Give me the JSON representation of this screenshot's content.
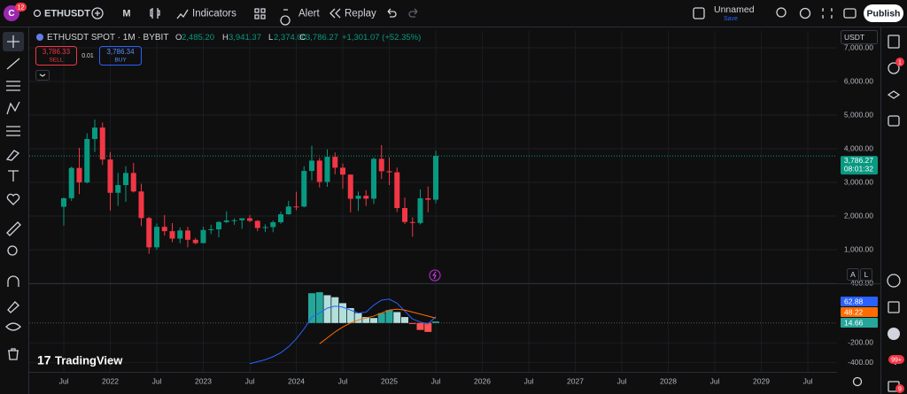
{
  "toolbar": {
    "avatar": "C",
    "avatar_badge": "12",
    "symbol": "ETHUSDT",
    "interval": "M",
    "indicators": "Indicators",
    "alert": "Alert",
    "replay": "Replay",
    "layout_name": "Unnamed",
    "layout_status": "Save",
    "publish": "Publish"
  },
  "legend": {
    "title": "ETHUSDT SPOT · 1M · BYBIT",
    "o_label": "O",
    "o": "2,485.20",
    "h_label": "H",
    "h": "3,941.37",
    "l_label": "L",
    "l": "2,374.00",
    "c_label": "C",
    "c": "3,786.27",
    "change": "+1,301.07 (+52.35%)"
  },
  "trade": {
    "sell_price": "3,786.33",
    "sell": "SELL",
    "spread": "0.01",
    "buy_price": "3,786.34",
    "buy": "BUY"
  },
  "price_axis": {
    "currency": "USDT",
    "last_price": "3,786.27",
    "countdown": "08:01:32",
    "auto": "A",
    "log": "L"
  },
  "macd_values": {
    "macd": "62.88",
    "signal": "48.22",
    "histogram": "14.66"
  },
  "watermark": "TradingView",
  "right_badges": {
    "alerts": "1",
    "chat": "99+",
    "news": "9"
  },
  "chart_data": {
    "type": "candlestick",
    "open": [
      2275,
      2530,
      3430,
      3000,
      4290,
      4630,
      3680,
      2690,
      2920,
      3280,
      2730,
      1940,
      1070,
      1680,
      1550,
      1330,
      1570,
      1295,
      1196,
      1585,
      1605,
      1822,
      1870,
      1874,
      1934,
      1856,
      1645,
      1671,
      1815,
      2052,
      2283,
      2282,
      3340,
      3647,
      3015,
      3760,
      3437,
      3232,
      2513,
      2603,
      2516,
      3700,
      3332,
      3300,
      2237,
      1822,
      1794,
      2528,
      2485.2
    ],
    "high": [
      2550,
      3470,
      4030,
      4460,
      4870,
      4780,
      3900,
      3280,
      3480,
      3580,
      2960,
      1970,
      1780,
      2030,
      1790,
      1660,
      1680,
      1350,
      1680,
      1740,
      1850,
      2140,
      1930,
      1930,
      2030,
      1880,
      1750,
      1865,
      2130,
      2450,
      2720,
      3480,
      4090,
      3730,
      3980,
      3890,
      3560,
      3240,
      2730,
      2770,
      3740,
      4110,
      3740,
      3440,
      2550,
      1960,
      2790,
      2880,
      3941.37
    ],
    "low": [
      1718,
      2450,
      2650,
      2970,
      3900,
      3520,
      2160,
      2300,
      2420,
      2700,
      1700,
      880,
      1000,
      1420,
      1220,
      1190,
      1070,
      1160,
      1190,
      1460,
      1370,
      1790,
      1740,
      1620,
      1820,
      1550,
      1530,
      1520,
      1770,
      2040,
      2170,
      2260,
      3060,
      2850,
      2870,
      3240,
      2810,
      2110,
      2150,
      2300,
      2360,
      3100,
      2920,
      2120,
      1760,
      1385,
      1750,
      2110,
      2374
    ],
    "close": [
      2530,
      3430,
      3000,
      4290,
      4630,
      3680,
      2690,
      2920,
      3280,
      2730,
      1940,
      1070,
      1680,
      1550,
      1330,
      1570,
      1295,
      1196,
      1585,
      1605,
      1822,
      1870,
      1874,
      1934,
      1856,
      1645,
      1671,
      1815,
      2052,
      2283,
      2282,
      3340,
      3647,
      3015,
      3760,
      3437,
      3232,
      2513,
      2603,
      2516,
      3700,
      3332,
      3300,
      2237,
      1822,
      1794,
      2528,
      2485.2,
      3786.27
    ],
    "up_color": "#089981",
    "down_color": "#f23645",
    "ylim": [
      0,
      7500
    ],
    "yticks": [
      {
        "value": 1000,
        "label": "1,000.00"
      },
      {
        "value": 2000,
        "label": "2,000.00"
      },
      {
        "value": 3000,
        "label": "3,000.00"
      },
      {
        "value": 4000,
        "label": "4,000.00"
      },
      {
        "value": 5000,
        "label": "5,000.00"
      },
      {
        "value": 6000,
        "label": "6,000.00"
      },
      {
        "value": 7000,
        "label": "7,000.00"
      }
    ],
    "time_labels": [
      "Jul",
      "2022",
      "Jul",
      "2023",
      "Jul",
      "2024",
      "Jul",
      "2025",
      "Jul",
      "2026",
      "Jul",
      "2027",
      "Jul",
      "2028",
      "Jul",
      "2029",
      "Jul"
    ],
    "macd": {
      "y2lim": [
        -500,
        400
      ],
      "y2ticks": [
        {
          "value": 400,
          "label": "400.00"
        },
        {
          "value": -200,
          "label": "-200.00"
        },
        {
          "value": -400,
          "label": "-400.00"
        }
      ],
      "series": [
        {
          "name": "MACD",
          "color": "#2962ff",
          "values": [
            null,
            null,
            null,
            null,
            null,
            null,
            null,
            null,
            null,
            null,
            null,
            null,
            null,
            null,
            null,
            null,
            null,
            null,
            null,
            null,
            null,
            null,
            null,
            null,
            -410,
            -390,
            -370,
            -340,
            -300,
            -240,
            -160,
            -60,
            60,
            100,
            150,
            170,
            160,
            130,
            100,
            110,
            180,
            230,
            240,
            200,
            120,
            40,
            10,
            -10,
            62.88
          ]
        },
        {
          "name": "Signal",
          "color": "#ff6d00",
          "values": [
            null,
            null,
            null,
            null,
            null,
            null,
            null,
            null,
            null,
            null,
            null,
            null,
            null,
            null,
            null,
            null,
            null,
            null,
            null,
            null,
            null,
            null,
            null,
            null,
            null,
            null,
            null,
            null,
            null,
            null,
            null,
            null,
            null,
            -210,
            -150,
            -90,
            -40,
            0,
            30,
            50,
            70,
            100,
            130,
            140,
            130,
            110,
            90,
            70,
            48.22
          ]
        }
      ],
      "histogram": [
        null,
        null,
        null,
        null,
        null,
        null,
        null,
        null,
        null,
        null,
        null,
        null,
        null,
        null,
        null,
        null,
        null,
        null,
        null,
        null,
        null,
        null,
        null,
        null,
        null,
        null,
        null,
        null,
        null,
        null,
        null,
        null,
        300,
        310,
        280,
        260,
        200,
        150,
        100,
        60,
        50,
        100,
        130,
        110,
        60,
        -10,
        -70,
        -90,
        14.66
      ]
    }
  }
}
